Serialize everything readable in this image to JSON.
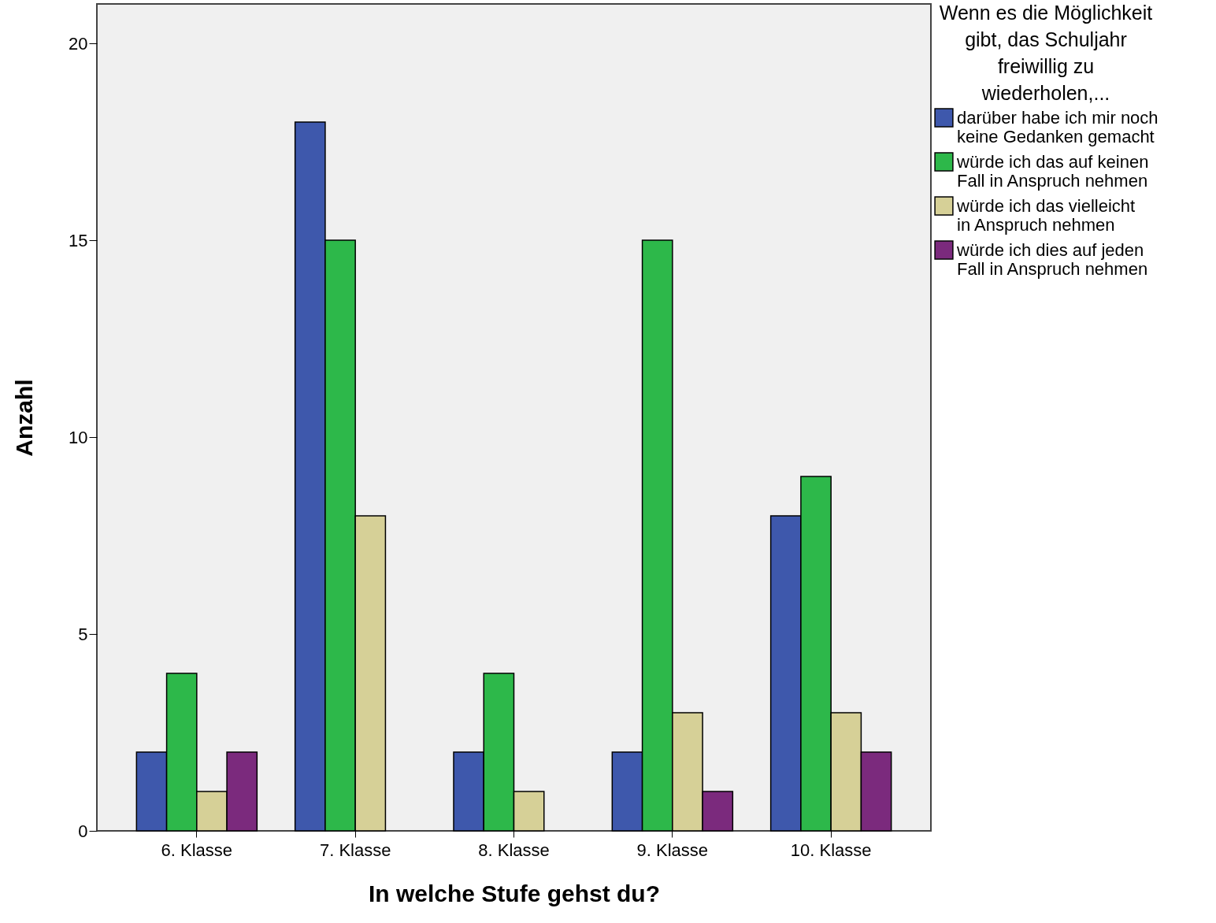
{
  "chart_data": {
    "type": "bar",
    "xlabel": "In welche Stufe gehst du?",
    "ylabel": "Anzahl",
    "legend_title": "Wenn es die Möglichkeit gibt, das Schuljahr freiwillig zu wiederholen,...",
    "legend": "right",
    "categories": [
      "6. Klasse",
      "7. Klasse",
      "8. Klasse",
      "9. Klasse",
      "10. Klasse"
    ],
    "series": [
      {
        "name": "darüber habe ich mir noch keine Gedanken gemacht",
        "color": "#3e58ac",
        "values": [
          2,
          18,
          2,
          2,
          8
        ]
      },
      {
        "name": "würde ich das auf keinen Fall in Anspruch nehmen",
        "color": "#2db84a",
        "values": [
          4,
          15,
          4,
          15,
          9
        ]
      },
      {
        "name": "würde ich das vielleicht in Anspruch nehmen",
        "color": "#d6d097",
        "values": [
          1,
          8,
          1,
          3,
          3
        ]
      },
      {
        "name": "würde ich dies auf jeden Fall in Anspruch nehmen",
        "color": "#7b2a7d",
        "values": [
          2,
          null,
          null,
          1,
          2
        ]
      }
    ],
    "ylim": [
      0,
      21
    ],
    "yticks": [
      0,
      5,
      10,
      15,
      20
    ]
  }
}
